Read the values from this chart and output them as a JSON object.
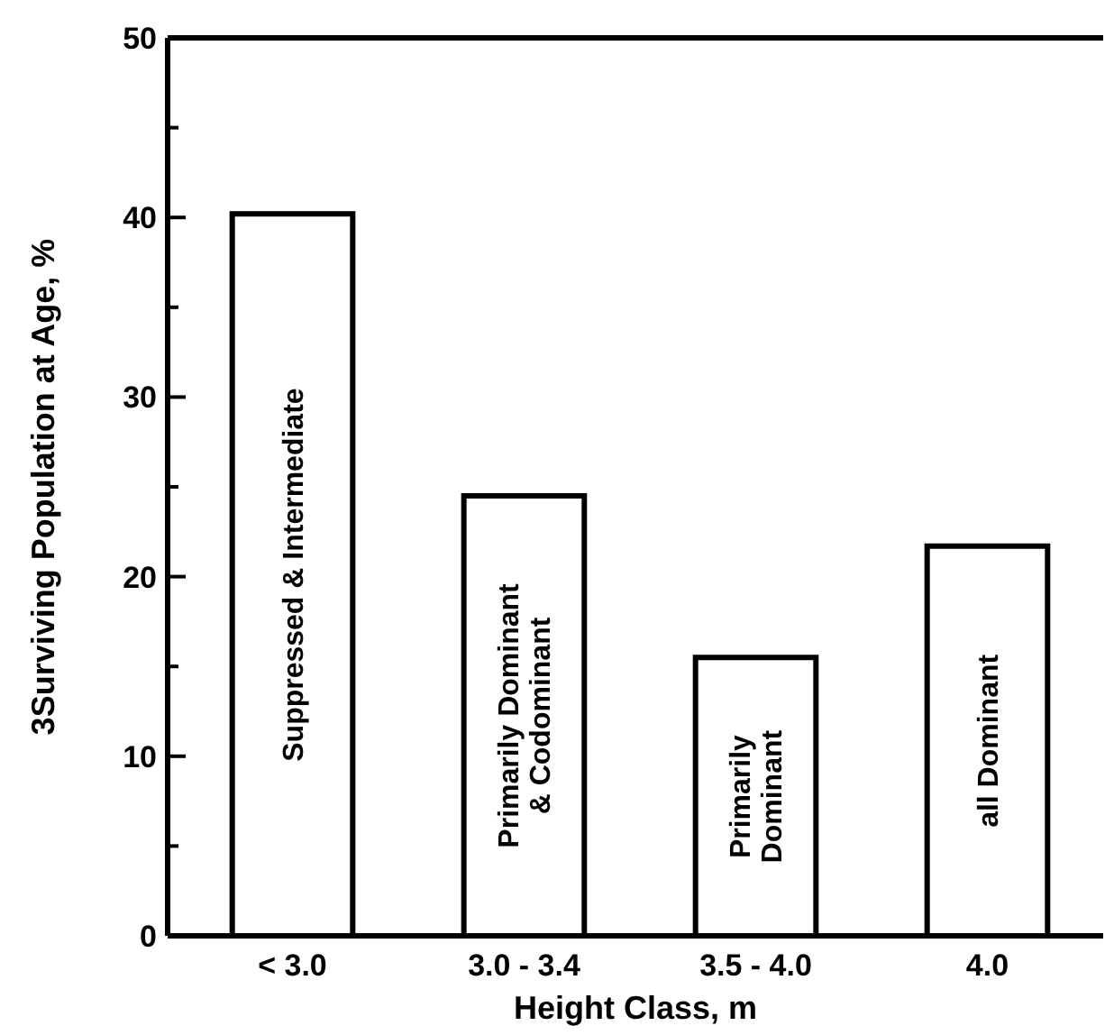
{
  "chart_data": {
    "type": "bar",
    "xlabel": "Height Class, m",
    "ylabel": "3Surviving Population at Age, %",
    "categories": [
      "< 3.0",
      "3.0 - 3.4",
      "3.5 - 4.0",
      "4.0"
    ],
    "values": [
      40.2,
      24.5,
      15.5,
      21.7
    ],
    "color": "#ffffff",
    "ylim": [
      0,
      50
    ],
    "yticks": [
      0,
      {
        "value": 5,
        "label": null
      },
      10,
      {
        "value": 15,
        "label": null
      },
      20,
      {
        "value": 25,
        "label": null
      },
      30,
      {
        "value": 35,
        "label": null
      },
      40,
      {
        "value": 45,
        "label": null
      },
      50
    ],
    "grid": false,
    "annotations": [
      "Suppressed & Intermediate",
      "Primarily Dominant\n& Codominant",
      "Primarily\nDominant",
      "all Dominant"
    ]
  }
}
